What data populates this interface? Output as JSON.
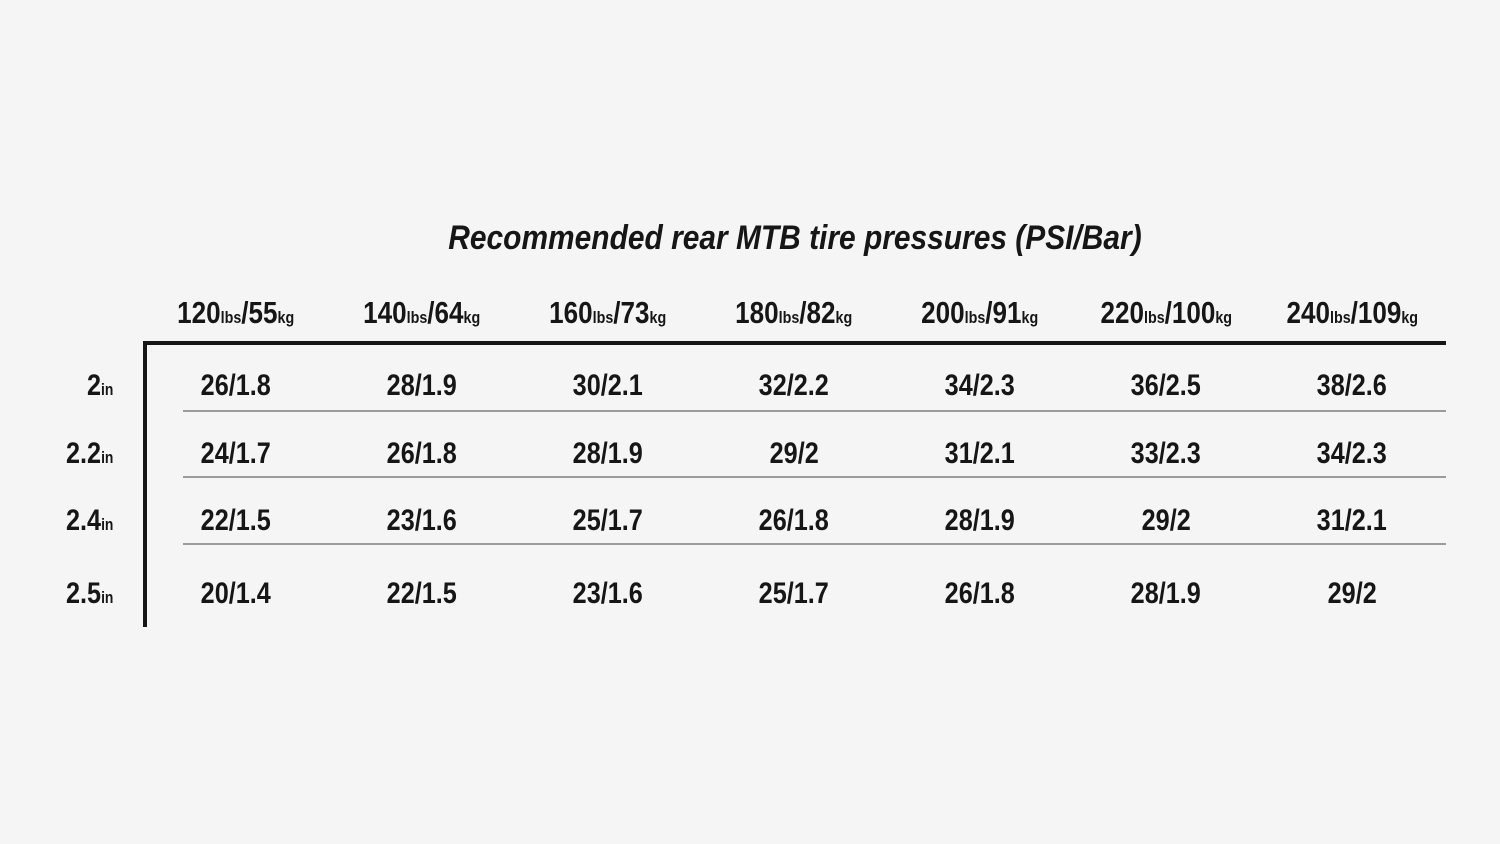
{
  "title": "Recommended rear MTB tire pressures (PSI/Bar)",
  "colors": {
    "background": "#f5f5f5",
    "text": "#161616",
    "border": "#161616",
    "row_separator": "#9b9b9b"
  },
  "table": {
    "columns": [
      {
        "main1": "120",
        "sub1": "lbs",
        "main2": "/55",
        "sub2": "kg"
      },
      {
        "main1": "140",
        "sub1": "lbs",
        "main2": "/64",
        "sub2": "kg"
      },
      {
        "main1": "160",
        "sub1": "lbs",
        "main2": "/73",
        "sub2": "kg"
      },
      {
        "main1": "180",
        "sub1": "lbs",
        "main2": "/82",
        "sub2": "kg"
      },
      {
        "main1": "200",
        "sub1": "lbs",
        "main2": "/91",
        "sub2": "kg"
      },
      {
        "main1": "220",
        "sub1": "lbs",
        "main2": "/100",
        "sub2": "kg"
      },
      {
        "main1": "240",
        "sub1": "lbs",
        "main2": "/109",
        "sub2": "kg"
      }
    ],
    "rows": [
      {
        "label": "2",
        "unit": "in",
        "cells": [
          "26/1.8",
          "28/1.9",
          "30/2.1",
          "32/2.2",
          "34/2.3",
          "36/2.5",
          "38/2.6"
        ]
      },
      {
        "label": "2.2",
        "unit": "in",
        "cells": [
          "24/1.7",
          "26/1.8",
          "28/1.9",
          "29/2",
          "31/2.1",
          "33/2.3",
          "34/2.3"
        ]
      },
      {
        "label": "2.4",
        "unit": "in",
        "cells": [
          "22/1.5",
          "23/1.6",
          "25/1.7",
          "26/1.8",
          "28/1.9",
          "29/2",
          "31/2.1"
        ]
      },
      {
        "label": "2.5",
        "unit": "in",
        "cells": [
          "20/1.4",
          "22/1.5",
          "23/1.6",
          "25/1.7",
          "26/1.8",
          "28/1.9",
          "29/2"
        ]
      }
    ]
  },
  "chart_data": {
    "type": "table",
    "title": "Recommended rear MTB tire pressures (PSI/Bar)",
    "unit_format": "PSI/Bar",
    "columns": [
      "120lbs/55kg",
      "140lbs/64kg",
      "160lbs/73kg",
      "180lbs/82kg",
      "200lbs/91kg",
      "220lbs/100kg",
      "240lbs/109kg"
    ],
    "row_labels": [
      "2in",
      "2.2in",
      "2.4in",
      "2.5in"
    ],
    "values": [
      [
        "26/1.8",
        "28/1.9",
        "30/2.1",
        "32/2.2",
        "34/2.3",
        "36/2.5",
        "38/2.6"
      ],
      [
        "24/1.7",
        "26/1.8",
        "28/1.9",
        "29/2",
        "31/2.1",
        "33/2.3",
        "34/2.3"
      ],
      [
        "22/1.5",
        "23/1.6",
        "25/1.7",
        "26/1.8",
        "28/1.9",
        "29/2",
        "31/2.1"
      ],
      [
        "20/1.4",
        "22/1.5",
        "23/1.6",
        "25/1.7",
        "26/1.8",
        "28/1.9",
        "29/2"
      ]
    ]
  }
}
